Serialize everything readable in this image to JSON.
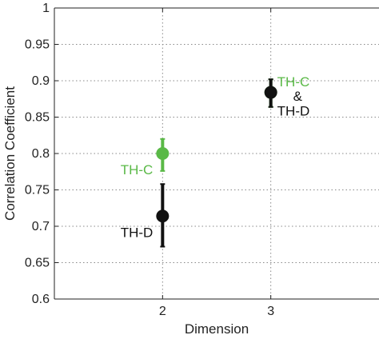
{
  "chart_data": {
    "type": "scatter",
    "title": "",
    "xlabel": "Dimension",
    "ylabel": "Correlation Coefficient",
    "xlim": [
      1,
      4
    ],
    "ylim": [
      0.6,
      1.0
    ],
    "x_ticks": [
      2,
      3
    ],
    "x_tick_labels": [
      "2",
      "3"
    ],
    "y_ticks": [
      0.6,
      0.65,
      0.7,
      0.75,
      0.8,
      0.85,
      0.9,
      0.95,
      1.0
    ],
    "y_tick_labels": [
      "0.6",
      "0.65",
      "0.7",
      "0.75",
      "0.8",
      "0.85",
      "0.9",
      "0.95",
      "1"
    ],
    "grid": true,
    "series": [
      {
        "name": "TH-C",
        "color": "#5ab947",
        "points": [
          {
            "x": 2,
            "y": 0.8,
            "err_low": 0.776,
            "err_high": 0.82
          },
          {
            "x": 3,
            "y": 0.884,
            "err_low": 0.864,
            "err_high": 0.902
          }
        ]
      },
      {
        "name": "TH-D",
        "color": "#111111",
        "points": [
          {
            "x": 2,
            "y": 0.714,
            "err_low": 0.672,
            "err_high": 0.758
          },
          {
            "x": 3,
            "y": 0.884,
            "err_low": 0.864,
            "err_high": 0.902
          }
        ]
      }
    ],
    "annotations": [
      {
        "text": "TH-C",
        "x": 2,
        "y": 0.8,
        "color": "#5ab947",
        "side": "left"
      },
      {
        "text": "TH-D",
        "x": 2,
        "y": 0.714,
        "color": "#111111",
        "side": "left"
      },
      {
        "text": "TH-C",
        "x": 3,
        "y": 0.899,
        "color": "#5ab947",
        "side": "right"
      },
      {
        "text": "&",
        "x": 3,
        "y": 0.879,
        "color": "#111111",
        "side": "right"
      },
      {
        "text": "TH-D",
        "x": 3,
        "y": 0.859,
        "color": "#111111",
        "side": "right"
      }
    ]
  }
}
